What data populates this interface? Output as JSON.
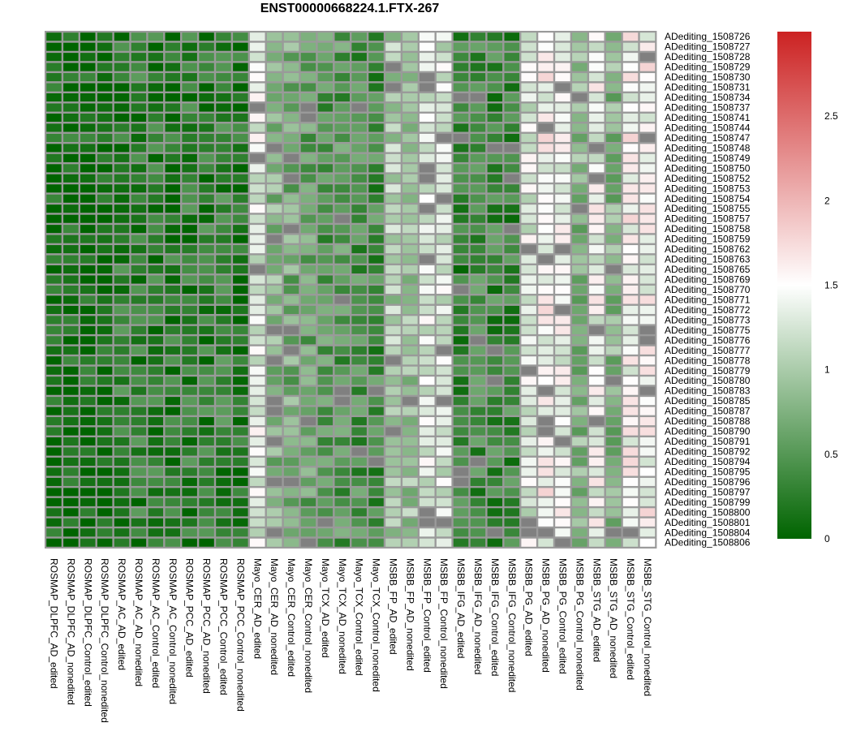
{
  "chart_data": {
    "type": "heatmap",
    "title": "ENST00000668224.1.FTX-267",
    "rows": [
      "ADediting_1508726",
      "ADediting_1508727",
      "ADediting_1508728",
      "ADediting_1508729",
      "ADediting_1508730",
      "ADediting_1508731",
      "ADediting_1508734",
      "ADediting_1508737",
      "ADediting_1508741",
      "ADediting_1508744",
      "ADediting_1508747",
      "ADediting_1508748",
      "ADediting_1508749",
      "ADediting_1508750",
      "ADediting_1508752",
      "ADediting_1508753",
      "ADediting_1508754",
      "ADediting_1508755",
      "ADediting_1508757",
      "ADediting_1508758",
      "ADediting_1508759",
      "ADediting_1508762",
      "ADediting_1508763",
      "ADediting_1508765",
      "ADediting_1508769",
      "ADediting_1508770",
      "ADediting_1508771",
      "ADediting_1508772",
      "ADediting_1508773",
      "ADediting_1508775",
      "ADediting_1508776",
      "ADediting_1508777",
      "ADediting_1508778",
      "ADediting_1508779",
      "ADediting_1508780",
      "ADediting_1508783",
      "ADediting_1508785",
      "ADediting_1508787",
      "ADediting_1508788",
      "ADediting_1508790",
      "ADediting_1508791",
      "ADediting_1508792",
      "ADediting_1508794",
      "ADediting_1508795",
      "ADediting_1508796",
      "ADediting_1508797",
      "ADediting_1508799",
      "ADediting_1508800",
      "ADediting_1508801",
      "ADediting_1508804",
      "ADediting_1508806"
    ],
    "columns": [
      "ROSMAP_DLPFC_AD_edited",
      "ROSMAP_DLPFC_AD_nonedited",
      "ROSMAP_DLPFC_Control_edited",
      "ROSMAP_DLPFC_Control_nonedited",
      "ROSMAP_AC_AD_edited",
      "ROSMAP_AC_AD_nonedited",
      "ROSMAP_AC_Control_edited",
      "ROSMAP_AC_Control_nonedited",
      "ROSMAP_PCC_AD_edited",
      "ROSMAP_PCC_AD_nonedited",
      "ROSMAP_PCC_Control_edited",
      "ROSMAP_PCC_Control_nonedited",
      "Mayo_CER_AD_edited",
      "Mayo_CER_AD_nonedited",
      "Mayo_CER_Control_edited",
      "Mayo_CER_Control_nonedited",
      "Mayo_TCX_AD_edited",
      "Mayo_TCX_AD_nonedited",
      "Mayo_TCX_Control_edited",
      "Mayo_TCX_Control_nonedited",
      "MSBB_FP_AD_edited",
      "MSBB_FP_AD_nonedited",
      "MSBB_FP_Control_edited",
      "MSBB_FP_Control_nonedited",
      "MSBB_IFG_AD_edited",
      "MSBB_IFG_AD_nonedited",
      "MSBB_IFG_Control_edited",
      "MSBB_IFG_Control_nonedited",
      "MSBB_PG_AD_edited",
      "MSBB_PG_AD_nonedited",
      "MSBB_PG_Control_edited",
      "MSBB_PG_Control_nonedited",
      "MSBB_STG_AD_edited",
      "MSBB_STG_AD_nonedited",
      "MSBB_STG_Control_edited",
      "MSBB_STG_Control_nonedited"
    ],
    "column_base_values": [
      0.05,
      0.1,
      0.05,
      0.05,
      0.25,
      0.25,
      0.25,
      0.2,
      0.25,
      0.25,
      0.3,
      0.15,
      1.3,
      0.8,
      0.7,
      0.6,
      0.5,
      0.5,
      0.45,
      0.4,
      1.0,
      0.9,
      1.3,
      1.25,
      0.3,
      0.4,
      0.35,
      0.35,
      1.3,
      1.5,
      1.4,
      0.8,
      1.4,
      0.8,
      1.5,
      1.5
    ],
    "missing_color": "#808080",
    "value_range": [
      0,
      3
    ],
    "colorscale": [
      {
        "value": 0,
        "color": "#006400"
      },
      {
        "value": 1.5,
        "color": "#ffffff"
      },
      {
        "value": 3,
        "color": "#cc2222"
      }
    ],
    "legend": {
      "ticks": [
        "0",
        "0.5",
        "1",
        "1.5",
        "2",
        "2.5"
      ],
      "tick_values": [
        0,
        0.5,
        1,
        1.5,
        2,
        2.5
      ],
      "position": "right"
    }
  }
}
